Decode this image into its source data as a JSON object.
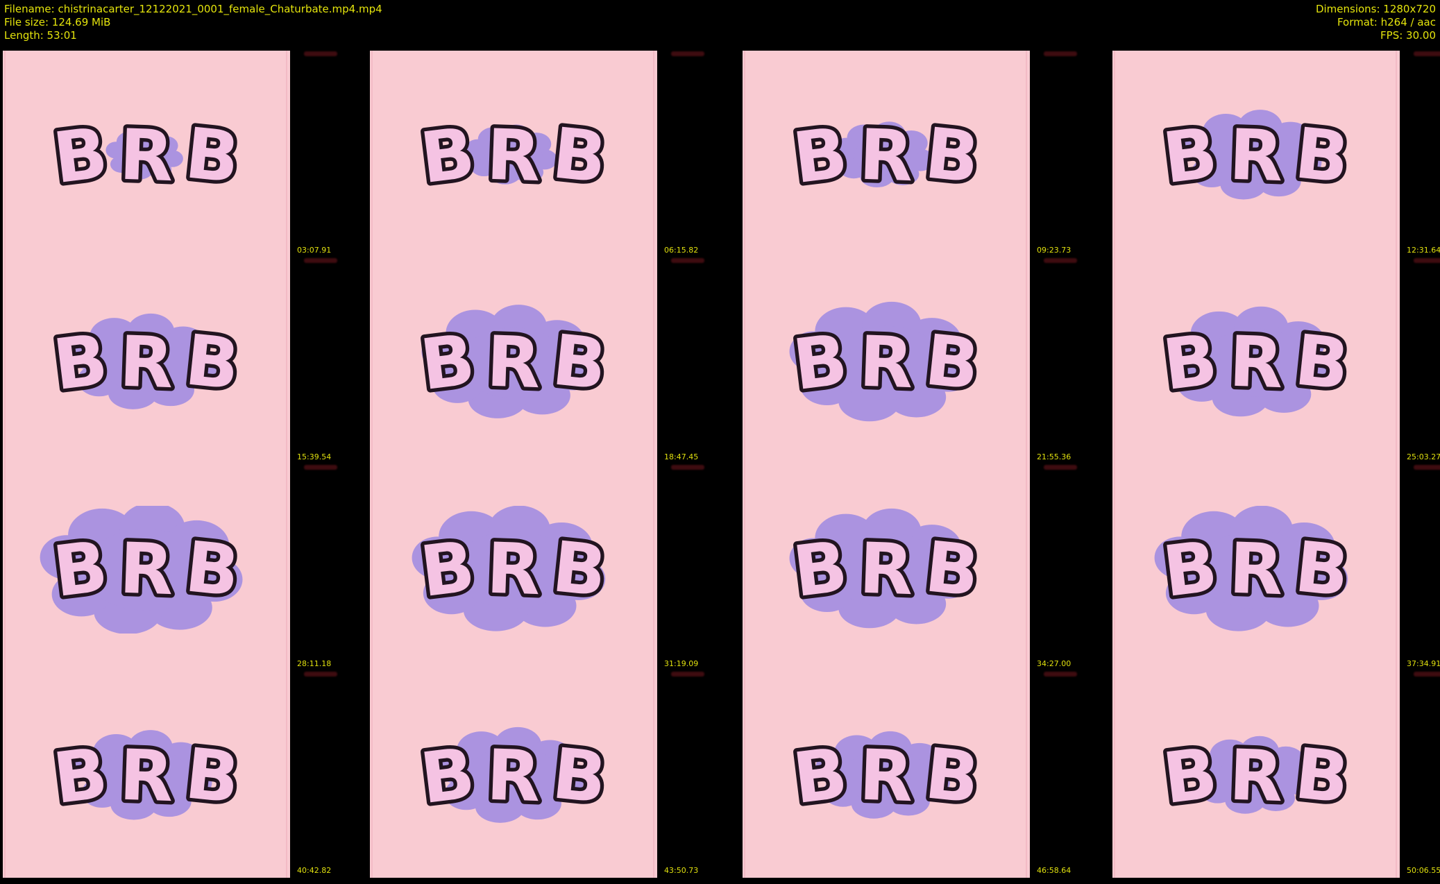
{
  "header": {
    "left": [
      "Filename: chistrinacarter_12122021_0001_female_Chaturbate.mp4.mp4",
      "File size: 124.69 MiB",
      "Length: 53:01"
    ],
    "right": [
      "Dimensions: 1280x720",
      "Format: h264 / aac",
      "FPS: 30.00"
    ]
  },
  "logo": {
    "letters": [
      "B",
      "R",
      "B"
    ]
  },
  "grid": {
    "columns": 4,
    "rows": 4,
    "timestamps": [
      [
        "03:07.91",
        "06:15.82",
        "09:23.73",
        "12:31.64"
      ],
      [
        "15:39.54",
        "18:47.45",
        "21:55.36",
        "25:03.27"
      ],
      [
        "28:11.18",
        "31:19.09",
        "34:27.00",
        "37:34.91"
      ],
      [
        "40:42.82",
        "43:50.73",
        "46:58.64",
        "50:06.55"
      ]
    ],
    "blob_scales": [
      [
        0.42,
        0.5,
        0.55,
        0.75
      ],
      [
        0.8,
        0.95,
        1.0,
        0.92
      ],
      [
        1.1,
        1.05,
        1.0,
        1.05
      ],
      [
        0.75,
        0.8,
        0.73,
        0.65
      ]
    ]
  },
  "colors": {
    "background": "#000000",
    "info_text": "#e4e40c",
    "timestamp_text": "#e0e00e",
    "frame_pink": "#f9cbd2",
    "blob_purple": "#ab93e0",
    "letter_pink": "#f5c3e3",
    "letter_outline": "#221420",
    "watermark_red": "#420d11"
  }
}
